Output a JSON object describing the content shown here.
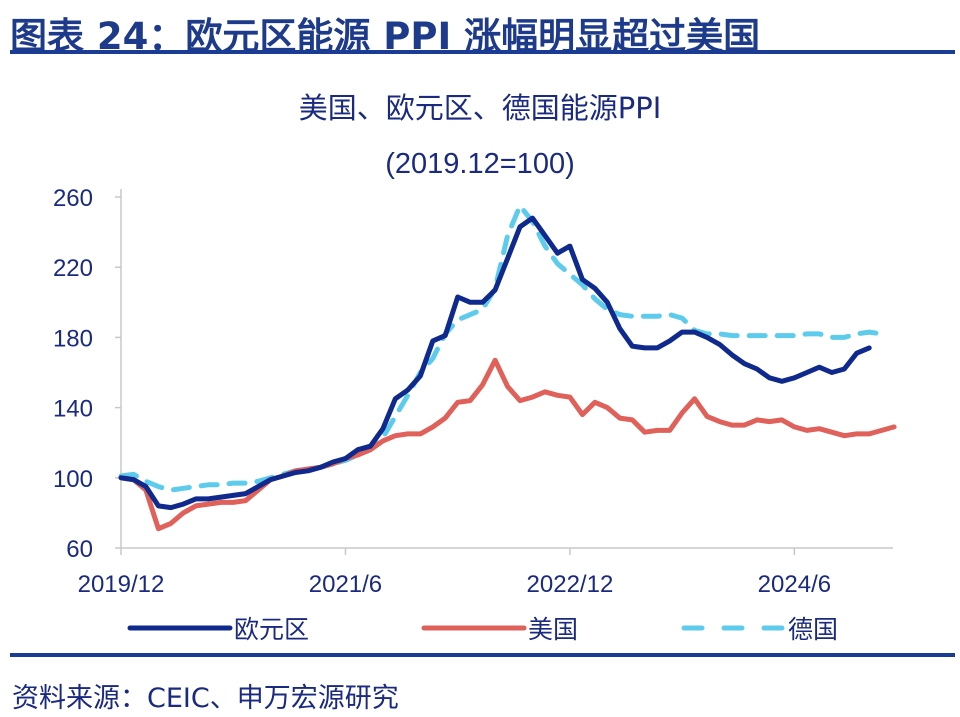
{
  "header": {
    "title": "图表 24：欧元区能源 PPI 涨幅明显超过美国"
  },
  "footer": {
    "source": "资料来源：CEIC、申万宏源研究"
  },
  "chart_data": {
    "type": "line",
    "title": "美国、欧元区、德国能源PPI",
    "subtitle": "(2019.12=100)",
    "xlabel": "",
    "ylabel": "",
    "x_start": "2019/12",
    "x_unit": "month",
    "x_tick_labels": [
      "2019/12",
      "2021/6",
      "2022/12",
      "2024/6"
    ],
    "y_tick_labels": [
      "60",
      "100",
      "140",
      "180",
      "220",
      "260"
    ],
    "ylim": [
      60,
      260
    ],
    "grid": false,
    "legend_position": "bottom",
    "colors": {
      "eurozone": "#0f2a8c",
      "us": "#e0605a",
      "germany": "#5ccbec"
    },
    "series": [
      {
        "name": "欧元区",
        "style": "solid",
        "values": [
          100,
          99,
          95,
          84,
          83,
          85,
          88,
          88,
          89,
          90,
          91,
          95,
          99,
          101,
          103,
          104,
          106,
          109,
          111,
          116,
          118,
          128,
          145,
          150,
          158,
          178,
          181,
          203,
          200,
          200,
          207,
          225,
          243,
          248,
          238,
          228,
          232,
          213,
          208,
          200,
          185,
          175,
          174,
          174,
          178,
          183,
          183,
          180,
          176,
          170,
          165,
          162,
          157,
          155,
          157,
          160,
          163,
          160,
          162,
          171,
          174
        ]
      },
      {
        "name": "美国",
        "style": "solid",
        "values": [
          100,
          99,
          93,
          71,
          74,
          80,
          84,
          85,
          86,
          86,
          87,
          93,
          99,
          101,
          104,
          105,
          106,
          108,
          111,
          113,
          116,
          121,
          124,
          125,
          125,
          129,
          134,
          143,
          144,
          153,
          167,
          152,
          144,
          146,
          149,
          147,
          146,
          136,
          143,
          140,
          134,
          133,
          126,
          127,
          127,
          137,
          145,
          135,
          132,
          130,
          130,
          133,
          132,
          133,
          129,
          127,
          128,
          126,
          124,
          125,
          125,
          127,
          129
        ]
      },
      {
        "name": "德国",
        "style": "dashed",
        "values": [
          101,
          102,
          98,
          95,
          93,
          94,
          95,
          96,
          96,
          97,
          97,
          98,
          100,
          102,
          104,
          105,
          106,
          108,
          110,
          113,
          116,
          123,
          135,
          147,
          160,
          168,
          182,
          190,
          193,
          196,
          208,
          238,
          255,
          246,
          232,
          222,
          216,
          210,
          202,
          196,
          193,
          192,
          192,
          192,
          193,
          191,
          184,
          182,
          182,
          181,
          181,
          181,
          181,
          181,
          181,
          182,
          182,
          180,
          180,
          182,
          183,
          182
        ]
      }
    ]
  }
}
